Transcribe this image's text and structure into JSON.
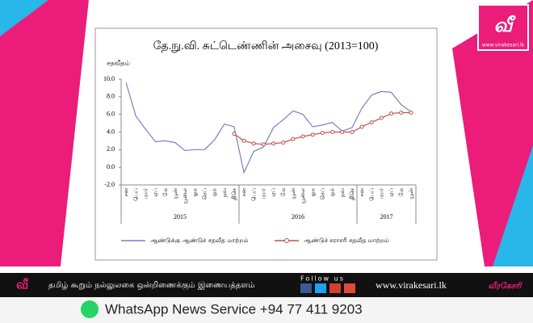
{
  "chart_data": {
    "type": "line",
    "title": "தே.நு.வி. சுட்டெண்ணின் அசைவு (2013=100)",
    "ylabel": "சதவீதம்",
    "categories": [
      "சன",
      "பெப்",
      "மார்",
      "ஏப்",
      "மே",
      "யூன்",
      "யூலை",
      "ஓக",
      "செப்",
      "ஒக்",
      "நவ",
      "திசெ",
      "சன",
      "பெப்",
      "மார்",
      "ஏப்",
      "மே",
      "யூன்",
      "யூலை",
      "ஓக",
      "செப்",
      "ஒக்",
      "நவ",
      "திசெ",
      "சன",
      "பெப்",
      "மார்",
      "ஏப்",
      "மே",
      "யூன்"
    ],
    "groups": [
      "2015",
      "2016",
      "2017"
    ],
    "series": [
      {
        "name": "ஆண்டுக்கு ஆண்டுச் சதவீத மாற்றம்",
        "color": "#7b7fc4",
        "values": [
          9.6,
          5.8,
          4.3,
          2.9,
          3.0,
          2.8,
          1.9,
          2.0,
          2.0,
          3.1,
          4.9,
          4.6,
          -0.6,
          1.8,
          2.3,
          4.5,
          5.4,
          6.4,
          6.0,
          4.6,
          4.8,
          5.1,
          4.1,
          4.5,
          6.7,
          8.2,
          8.6,
          8.5,
          7.1,
          6.3
        ]
      },
      {
        "name": "ஆண்டுச் சராசரி சதவீத மாற்றம்",
        "color": "#c0504d",
        "markers": true,
        "values": [
          null,
          null,
          null,
          null,
          null,
          null,
          null,
          null,
          null,
          null,
          null,
          3.8,
          3.0,
          2.7,
          2.6,
          2.7,
          2.8,
          3.2,
          3.5,
          3.7,
          3.9,
          4.0,
          4.0,
          4.0,
          4.6,
          5.1,
          5.6,
          6.1,
          6.2,
          6.2
        ]
      }
    ],
    "ylim": [
      -2,
      10
    ],
    "yticks": [
      {
        "value": -2,
        "label": "-2.0"
      },
      {
        "value": 0,
        "label": "0.0"
      },
      {
        "value": 2,
        "label": "2.0"
      },
      {
        "value": 4,
        "label": "4.0"
      },
      {
        "value": 6,
        "label": "6.0"
      },
      {
        "value": 8,
        "label": "8.0"
      },
      {
        "value": 10,
        "label": "10.0"
      }
    ],
    "legend": "bottom"
  },
  "logo": {
    "mark": "வீ",
    "url": "www.virakesari.lk"
  },
  "banner": {
    "tagline": "தமிழ் கூறும் நல்லுலகை ஒன்றிணைக்கும் இணையத்தளம்",
    "follow": "Follow us",
    "url": "www.virakesari.lk",
    "brand": "வீரகேசரி"
  },
  "whatsapp": "WhatsApp News Service +94 77 411 9203"
}
